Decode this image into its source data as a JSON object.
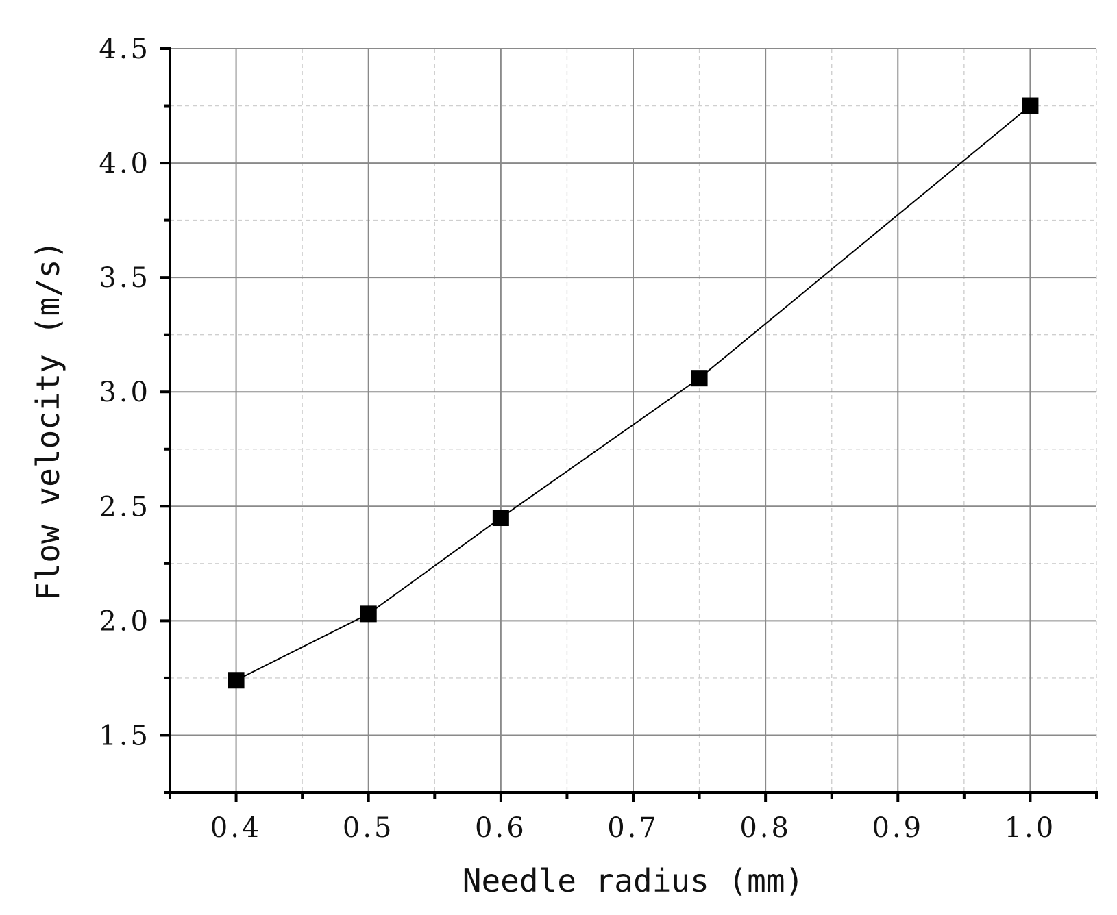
{
  "chart_data": {
    "type": "line",
    "title": "",
    "xlabel": "Needle radius (mm)",
    "ylabel": "Flow velocity (m/s)",
    "xlim": [
      0.35,
      1.05
    ],
    "ylim": [
      1.25,
      4.5
    ],
    "xticks": [
      0.4,
      0.5,
      0.6,
      0.7,
      0.8,
      0.9,
      1.0
    ],
    "xtick_labels": [
      "0.4",
      "0.5",
      "0.6",
      "0.7",
      "0.8",
      "0.9",
      "1.0"
    ],
    "yticks": [
      1.5,
      2.0,
      2.5,
      3.0,
      3.5,
      4.0,
      4.5
    ],
    "ytick_labels": [
      "1.5",
      "2.0",
      "2.5",
      "3.0",
      "3.5",
      "4.0",
      "4.5"
    ],
    "grid": true,
    "marker": "square",
    "line_color": "#000000",
    "series": [
      {
        "x": [
          0.4,
          0.5,
          0.6,
          0.75,
          1.0
        ],
        "y": [
          1.74,
          2.03,
          2.45,
          3.06,
          4.25
        ]
      }
    ]
  }
}
